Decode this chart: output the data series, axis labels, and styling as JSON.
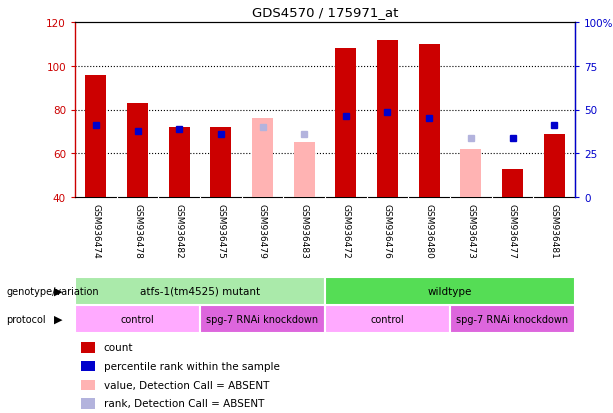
{
  "title": "GDS4570 / 175971_at",
  "samples": [
    "GSM936474",
    "GSM936478",
    "GSM936482",
    "GSM936475",
    "GSM936479",
    "GSM936483",
    "GSM936472",
    "GSM936476",
    "GSM936480",
    "GSM936473",
    "GSM936477",
    "GSM936481"
  ],
  "count_values": [
    96,
    83,
    72,
    72,
    null,
    null,
    108,
    112,
    110,
    null,
    53,
    69
  ],
  "count_absent": [
    null,
    null,
    null,
    null,
    76,
    65,
    null,
    null,
    null,
    62,
    null,
    null
  ],
  "rank_values": [
    73,
    70,
    71,
    69,
    null,
    null,
    77,
    79,
    76,
    null,
    67,
    73
  ],
  "rank_absent": [
    null,
    null,
    null,
    null,
    72,
    69,
    null,
    null,
    null,
    67,
    null,
    null
  ],
  "ylim_left": [
    40,
    120
  ],
  "ylim_right": [
    0,
    100
  ],
  "yticks_left": [
    40,
    60,
    80,
    100,
    120
  ],
  "yticks_right": [
    0,
    25,
    50,
    75,
    100
  ],
  "ytick_labels_right": [
    "0",
    "25",
    "50",
    "75",
    "100%"
  ],
  "color_count": "#cc0000",
  "color_rank": "#0000cc",
  "color_count_absent": "#ffb3b3",
  "color_rank_absent": "#b3b3dd",
  "bar_width": 0.5,
  "sample_bg": "#cccccc",
  "genotype_groups": [
    {
      "label": "atfs-1(tm4525) mutant",
      "start": 0,
      "end": 6,
      "color": "#aaeaaa"
    },
    {
      "label": "wildtype",
      "start": 6,
      "end": 12,
      "color": "#55dd55"
    }
  ],
  "protocol_groups": [
    {
      "label": "control",
      "start": 0,
      "end": 3,
      "color": "#ffaaff"
    },
    {
      "label": "spg-7 RNAi knockdown",
      "start": 3,
      "end": 6,
      "color": "#dd66dd"
    },
    {
      "label": "control",
      "start": 6,
      "end": 9,
      "color": "#ffaaff"
    },
    {
      "label": "spg-7 RNAi knockdown",
      "start": 9,
      "end": 12,
      "color": "#dd66dd"
    }
  ],
  "legend_items": [
    {
      "label": "count",
      "color": "#cc0000"
    },
    {
      "label": "percentile rank within the sample",
      "color": "#0000cc"
    },
    {
      "label": "value, Detection Call = ABSENT",
      "color": "#ffb3b3"
    },
    {
      "label": "rank, Detection Call = ABSENT",
      "color": "#b3b3dd"
    }
  ],
  "fig_width": 6.13,
  "fig_height": 4.14,
  "dpi": 100
}
